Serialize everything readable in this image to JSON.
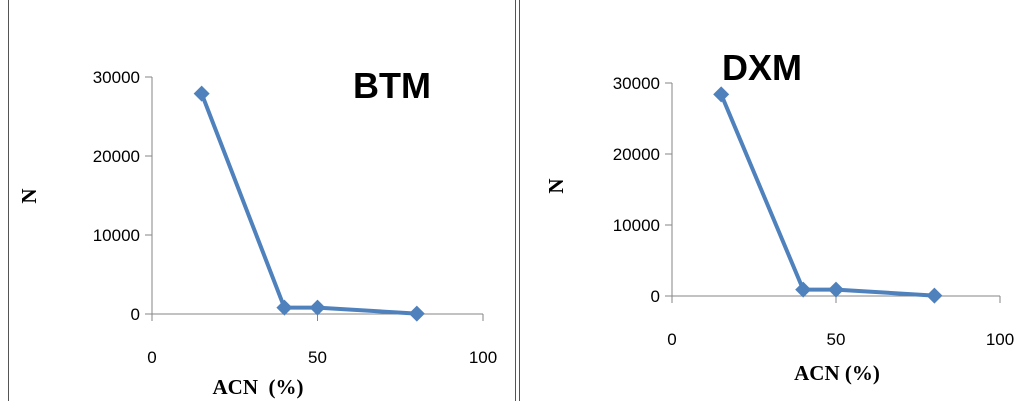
{
  "chart_data": [
    {
      "type": "line",
      "title": "BTM",
      "xlabel": "ACN  (%)",
      "ylabel": "N",
      "xlim": [
        0,
        100
      ],
      "ylim": [
        0,
        30000
      ],
      "xticks": [
        "0",
        "50",
        "100"
      ],
      "yticks": [
        "0",
        "10000",
        "20000",
        "30000"
      ],
      "series": [
        {
          "x": [
            15,
            40,
            50,
            80
          ],
          "values": [
            27900,
            800,
            800,
            50
          ]
        }
      ],
      "color": "#4f81bd",
      "grid": false,
      "legend": "none"
    },
    {
      "type": "line",
      "title": "DXM",
      "xlabel": "ACN (%)",
      "ylabel": "N",
      "xlim": [
        0,
        100
      ],
      "ylim": [
        0,
        30000
      ],
      "xticks": [
        "0",
        "50",
        "100"
      ],
      "yticks": [
        "0",
        "10000",
        "20000",
        "30000"
      ],
      "series": [
        {
          "x": [
            15,
            40,
            50,
            80
          ],
          "values": [
            28400,
            900,
            900,
            50
          ]
        }
      ],
      "color": "#4f81bd",
      "grid": false,
      "legend": "none"
    }
  ]
}
